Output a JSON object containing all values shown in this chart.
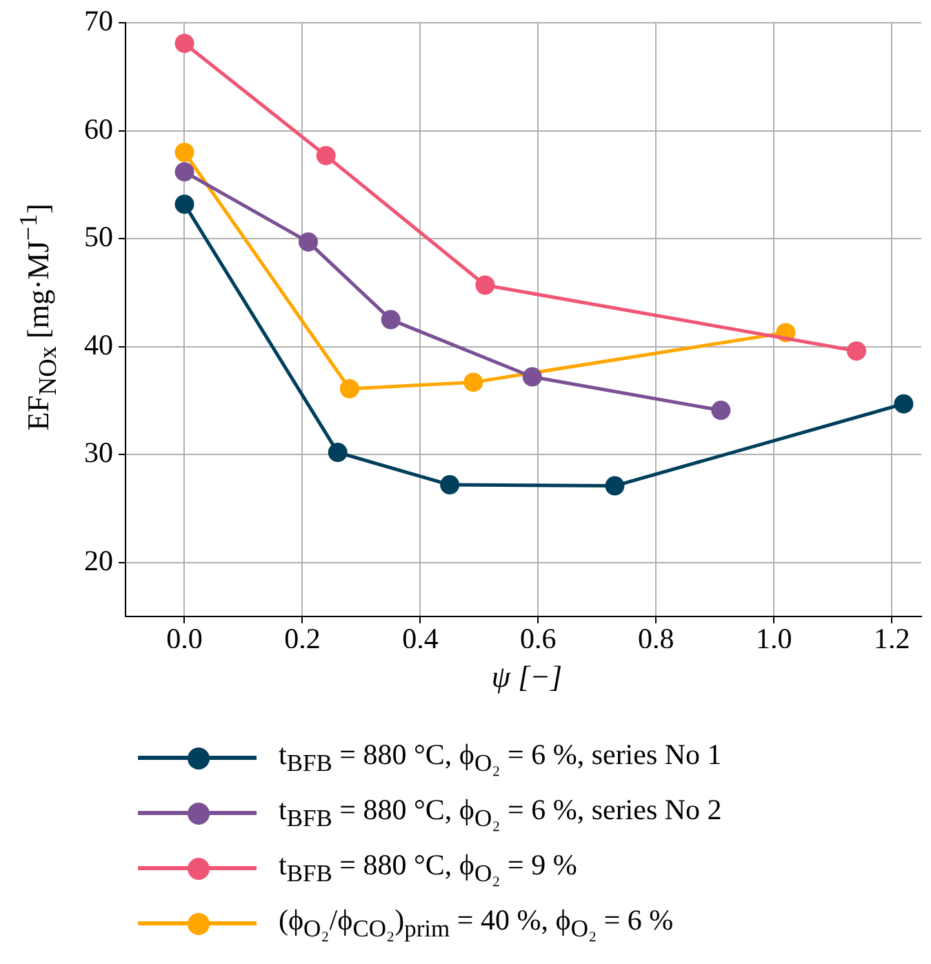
{
  "chart_data": {
    "type": "line",
    "xlabel": "ψ [−]",
    "ylabel": "EF$_{NOx}$ [mg·MJ$^{−1}$]",
    "xlim": [
      -0.1,
      1.25
    ],
    "xticks": [
      {
        "value": 0,
        "label": "0.0"
      },
      {
        "value": 0.2,
        "label": "0.2"
      },
      {
        "value": 0.4,
        "label": "0.4"
      },
      {
        "value": 0.6,
        "label": "0.6"
      },
      {
        "value": 0.8,
        "label": "0.8"
      },
      {
        "value": 1,
        "label": "1.0"
      },
      {
        "value": 1.2,
        "label": "1.2"
      }
    ],
    "ylim": [
      15,
      70
    ],
    "yticks": [
      20,
      30,
      40,
      50,
      60,
      70
    ],
    "grid": true,
    "legend": "bottom",
    "marker": "circle",
    "line_style": "solid",
    "series": [
      {
        "name": "t$_{BFB}$ = 880 °C, ϕ$_{O₂}$ = 6 %, series No 1",
        "color": "#003f5c",
        "x": [
          0,
          0.26,
          0.45,
          0.73,
          1.22
        ],
        "values": [
          53.2,
          30.2,
          27.2,
          27.1,
          34.7
        ]
      },
      {
        "name": "t$_{BFB}$ = 880 °C, ϕ$_{O₂}$ = 6 %, series No 2",
        "color": "#7a5195",
        "x": [
          0,
          0.21,
          0.35,
          0.59,
          0.91
        ],
        "values": [
          56.2,
          49.7,
          42.5,
          37.2,
          34.1
        ]
      },
      {
        "name": "t$_{BFB}$ = 880 °C, ϕ$_{O₂}$ = 9 %",
        "color": "#ef5675",
        "x": [
          0,
          0.24,
          0.51,
          1.14
        ],
        "values": [
          68.1,
          57.7,
          45.7,
          39.6
        ]
      },
      {
        "name": "(ϕ$_{O₂}$/ϕ$_{CO₂}$)$_{prim}$ = 40 %, ϕ$_{O₂}$ = 6 %",
        "color": "#ffa600",
        "x": [
          0,
          0.28,
          0.49,
          1.02
        ],
        "values": [
          58.0,
          36.1,
          36.7,
          41.3
        ]
      }
    ]
  }
}
